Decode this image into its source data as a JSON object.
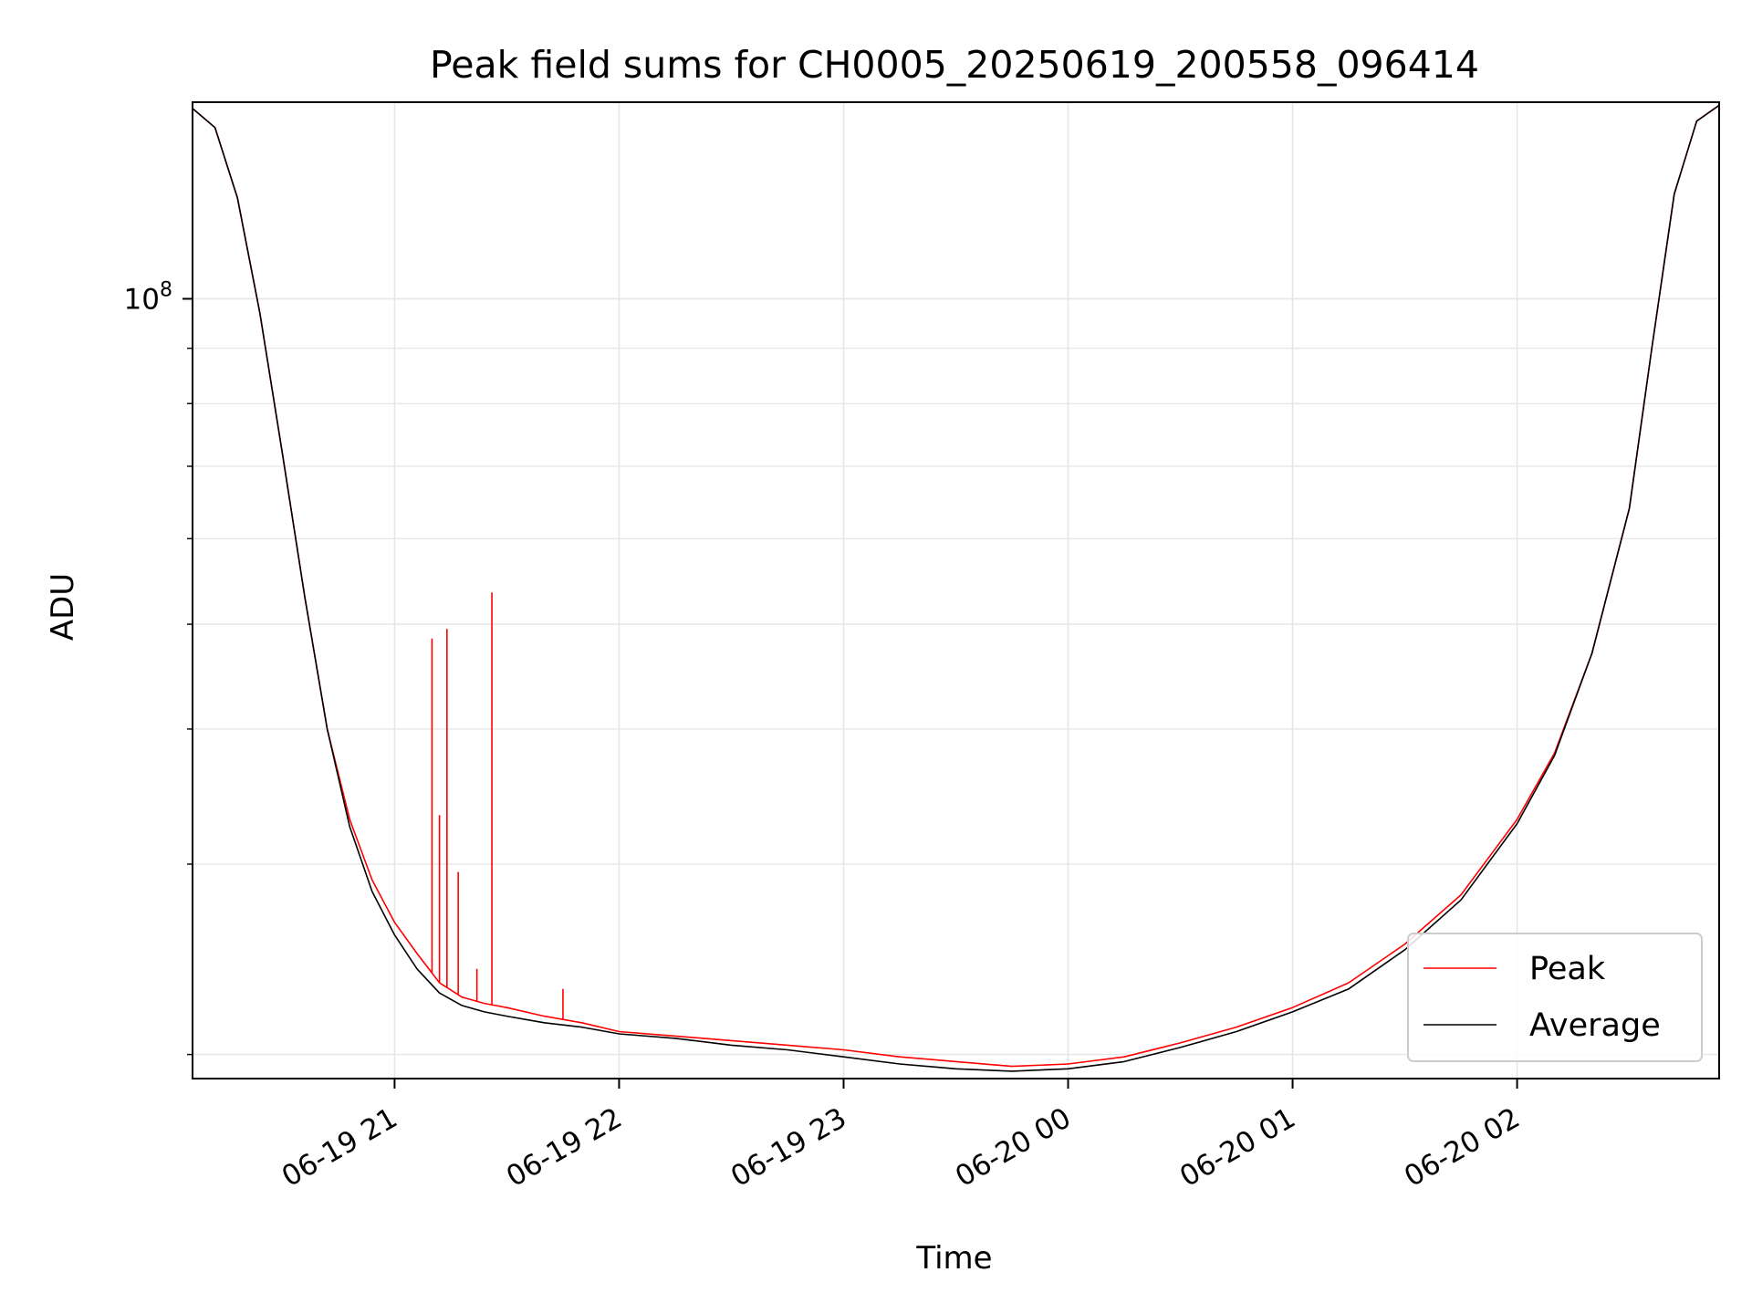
{
  "chart_data": {
    "type": "line",
    "title": "Peak field sums for CH0005_20250619_200558_096414",
    "xlabel": "Time",
    "ylabel": "ADU",
    "yscale": "log",
    "xlim": [
      "2025-06-19 20:06",
      "2025-06-20 02:54"
    ],
    "ylim": [
      19000000,
      152000000
    ],
    "x_ticks": [
      "06-19 21",
      "06-19 22",
      "06-19 23",
      "06-20 00",
      "06-20 01",
      "06-20 02"
    ],
    "y_major_tick": "10^8",
    "grid": true,
    "legend_position": "lower-right",
    "series": [
      {
        "name": "Peak",
        "color": "#ff0000",
        "x": [
          "2025-06-19 20:06",
          "2025-06-19 20:12",
          "2025-06-19 20:18",
          "2025-06-19 20:24",
          "2025-06-19 20:30",
          "2025-06-19 20:36",
          "2025-06-19 20:42",
          "2025-06-19 20:48",
          "2025-06-19 20:54",
          "2025-06-19 21:00",
          "2025-06-19 21:06",
          "2025-06-19 21:12",
          "2025-06-19 21:18",
          "2025-06-19 21:24",
          "2025-06-19 21:30",
          "2025-06-19 21:40",
          "2025-06-19 21:50",
          "2025-06-19 22:00",
          "2025-06-19 22:15",
          "2025-06-19 22:30",
          "2025-06-19 22:45",
          "2025-06-19 23:00",
          "2025-06-19 23:15",
          "2025-06-19 23:30",
          "2025-06-19 23:45",
          "2025-06-20 00:00",
          "2025-06-20 00:15",
          "2025-06-20 00:30",
          "2025-06-20 00:45",
          "2025-06-20 01:00",
          "2025-06-20 01:15",
          "2025-06-20 01:30",
          "2025-06-20 01:45",
          "2025-06-20 02:00",
          "2025-06-20 02:10",
          "2025-06-20 02:20",
          "2025-06-20 02:30",
          "2025-06-20 02:36",
          "2025-06-20 02:42",
          "2025-06-20 02:48",
          "2025-06-20 02:54"
        ],
        "y": [
          150000000,
          144000000,
          124000000,
          97000000,
          72000000,
          53000000,
          40000000,
          33000000,
          29000000,
          26500000,
          24800000,
          23300000,
          22600000,
          22300000,
          22100000,
          21700000,
          21400000,
          21000000,
          20800000,
          20600000,
          20400000,
          20200000,
          19900000,
          19700000,
          19500000,
          19600000,
          19900000,
          20500000,
          21200000,
          22100000,
          23300000,
          25300000,
          28100000,
          33000000,
          38000000,
          47000000,
          64000000,
          90000000,
          125000000,
          146000000,
          151000000
        ],
        "spikes": [
          {
            "x": "2025-06-19 21:10",
            "y": 48500000
          },
          {
            "x": "2025-06-19 21:12",
            "y": 33300000
          },
          {
            "x": "2025-06-19 21:14",
            "y": 49500000
          },
          {
            "x": "2025-06-19 21:17",
            "y": 29500000
          },
          {
            "x": "2025-06-19 21:22",
            "y": 24000000
          },
          {
            "x": "2025-06-19 21:26",
            "y": 53500000
          },
          {
            "x": "2025-06-19 21:45",
            "y": 23000000
          }
        ]
      },
      {
        "name": "Average",
        "color": "#000000",
        "x": [
          "2025-06-19 20:06",
          "2025-06-19 20:12",
          "2025-06-19 20:18",
          "2025-06-19 20:24",
          "2025-06-19 20:30",
          "2025-06-19 20:36",
          "2025-06-19 20:42",
          "2025-06-19 20:48",
          "2025-06-19 20:54",
          "2025-06-19 21:00",
          "2025-06-19 21:06",
          "2025-06-19 21:12",
          "2025-06-19 21:18",
          "2025-06-19 21:24",
          "2025-06-19 21:30",
          "2025-06-19 21:40",
          "2025-06-19 21:50",
          "2025-06-19 22:00",
          "2025-06-19 22:15",
          "2025-06-19 22:30",
          "2025-06-19 22:45",
          "2025-06-19 23:00",
          "2025-06-19 23:15",
          "2025-06-19 23:30",
          "2025-06-19 23:45",
          "2025-06-20 00:00",
          "2025-06-20 00:15",
          "2025-06-20 00:30",
          "2025-06-20 00:45",
          "2025-06-20 01:00",
          "2025-06-20 01:15",
          "2025-06-20 01:30",
          "2025-06-20 01:45",
          "2025-06-20 02:00",
          "2025-06-20 02:10",
          "2025-06-20 02:20",
          "2025-06-20 02:30",
          "2025-06-20 02:36",
          "2025-06-20 02:42",
          "2025-06-20 02:48",
          "2025-06-20 02:54"
        ],
        "y": [
          150000000,
          144000000,
          124000000,
          97000000,
          72000000,
          53000000,
          40000000,
          32500000,
          28300000,
          25800000,
          24000000,
          22800000,
          22200000,
          21900000,
          21700000,
          21400000,
          21200000,
          20900000,
          20700000,
          20400000,
          20200000,
          19900000,
          19600000,
          19400000,
          19300000,
          19400000,
          19700000,
          20300000,
          21000000,
          21900000,
          23000000,
          25000000,
          27800000,
          32700000,
          37800000,
          47000000,
          64000000,
          90000000,
          125000000,
          146000000,
          151000000
        ]
      }
    ]
  }
}
